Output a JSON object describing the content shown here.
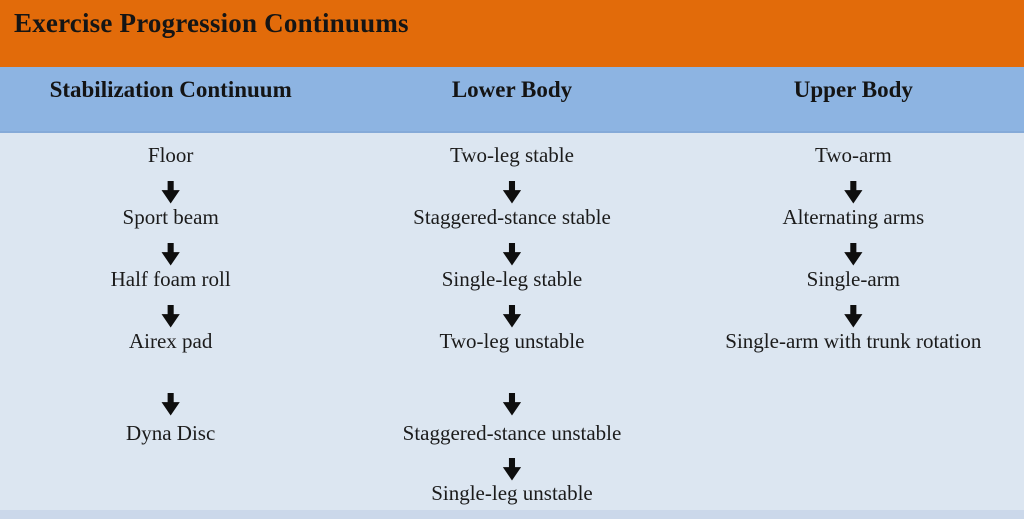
{
  "title": "Exercise Progression Continuums",
  "columns": [
    {
      "header": "Stabilization Continuum",
      "items": [
        "Floor",
        "Sport beam",
        "Half foam roll",
        "Airex pad",
        "Dyna Disc"
      ]
    },
    {
      "header": "Lower Body",
      "items": [
        "Two-leg stable",
        "Staggered-stance stable",
        "Single-leg stable",
        "Two-leg unstable",
        "Staggered-stance unstable",
        "Single-leg unstable"
      ]
    },
    {
      "header": "Upper Body",
      "items": [
        "Two-arm",
        "Alternating arms",
        "Single-arm",
        "Single-arm with trunk rotation"
      ]
    }
  ],
  "icons": {
    "down_arrow": "⬇"
  },
  "colors": {
    "title_bg": "#E26B0A",
    "header_bg": "#8DB4E2",
    "body_bg": "#DCE6F1",
    "text": "#1A1A1A",
    "bottom_strip": "#CBD8EA",
    "arrow": "#0E0E0E"
  }
}
